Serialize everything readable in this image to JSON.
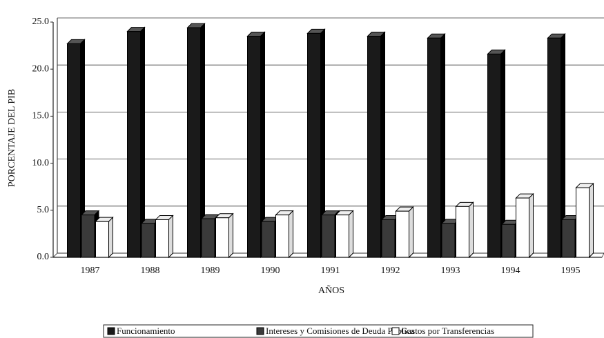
{
  "chart_data": {
    "type": "bar3d",
    "x_label": "AÑOS",
    "y_label": "PORCENTAJE DEL PIB",
    "categories": [
      "1987",
      "1988",
      "1989",
      "1990",
      "1991",
      "1992",
      "1993",
      "1994",
      "1995"
    ],
    "series": [
      {
        "name": "Funcionamiento",
        "color": "#1a1a1a",
        "values": [
          22.7,
          24.0,
          24.4,
          23.5,
          23.8,
          23.5,
          23.3,
          21.6,
          23.3
        ]
      },
      {
        "name": "Intereses y Comisiones de Deuda Pública",
        "color": "#3a3a3a",
        "values": [
          4.5,
          3.6,
          4.1,
          3.8,
          4.5,
          4.0,
          3.6,
          3.5,
          4.0
        ]
      },
      {
        "name": "Gastos por Transferencias",
        "color": "#ffffff",
        "values": [
          3.8,
          4.0,
          4.2,
          4.5,
          4.5,
          4.9,
          5.4,
          6.3,
          7.4
        ]
      }
    ],
    "ylim": [
      0,
      25
    ],
    "yticks": [
      {
        "value": 0,
        "label": "0.0"
      },
      {
        "value": 5,
        "label": "5.0"
      },
      {
        "value": 10,
        "label": "10.0"
      },
      {
        "value": 15,
        "label": "15.0"
      },
      {
        "value": 20,
        "label": "20.0"
      },
      {
        "value": 25,
        "label": "25.0"
      }
    ],
    "grid": true,
    "legend": "bottom"
  }
}
